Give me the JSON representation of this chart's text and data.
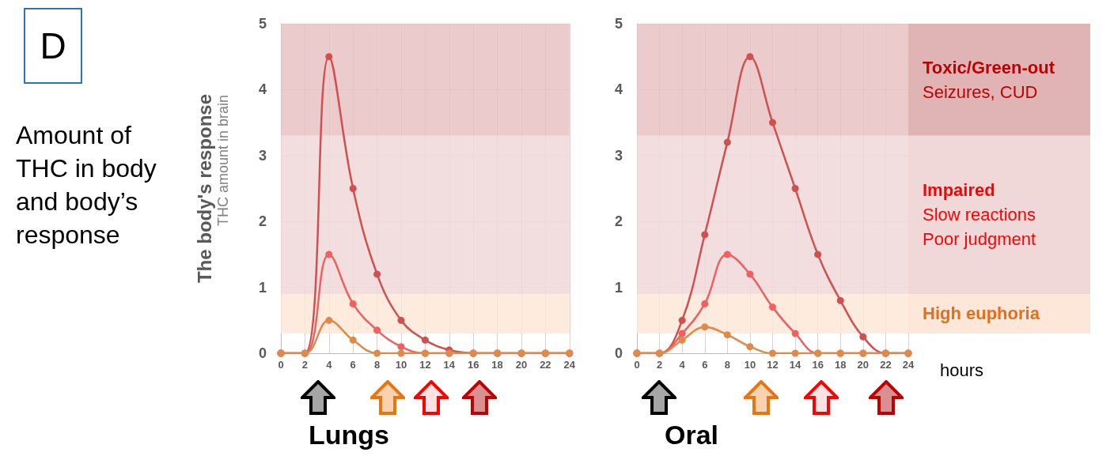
{
  "chart_data": [
    {
      "type": "line",
      "title": "Lungs",
      "ylabel": "The body's response",
      "annotations": [
        "D",
        "Amount of THC in body and body’s response",
        "THC amount in brain"
      ],
      "x": [
        0,
        2,
        4,
        6,
        8,
        10,
        12,
        14,
        16,
        18,
        20,
        22,
        24
      ],
      "series": [
        {
          "color": "#d05050",
          "values": [
            0,
            0,
            4.5,
            2.5,
            1.2,
            0.5,
            0.2,
            0.05,
            0,
            0,
            0,
            0,
            0
          ]
        },
        {
          "color": "#f06060",
          "values": [
            0,
            0,
            1.5,
            0.75,
            0.35,
            0.1,
            0,
            0,
            0,
            0,
            0,
            0,
            0
          ]
        },
        {
          "color": "#e08a4a",
          "values": [
            0,
            0,
            0.5,
            0.2,
            0,
            0,
            0,
            0,
            0,
            0,
            0,
            0,
            0
          ]
        }
      ],
      "xlim": [
        0,
        24
      ],
      "xticks": [
        0,
        2,
        4,
        6,
        8,
        10,
        12,
        14,
        16,
        18,
        20,
        22,
        24
      ],
      "ylim": [
        0,
        5
      ],
      "yticks": [
        0,
        1,
        2,
        3,
        4,
        5
      ],
      "grid": true,
      "marker": "circle",
      "line_style": "solid",
      "bands": [
        {
          "axis": "y",
          "from": 3.3,
          "to": 5,
          "color": "#e8c2c2"
        },
        {
          "axis": "y",
          "from": 0.9,
          "to": 3.3,
          "color": "#f0d8d8"
        },
        {
          "axis": "y",
          "from": 0.3,
          "to": 0.9,
          "color": "#fde7d8"
        }
      ]
    },
    {
      "type": "line",
      "title": "Oral",
      "xlabel": "hours",
      "x": [
        0,
        2,
        4,
        6,
        8,
        10,
        12,
        14,
        16,
        18,
        20,
        22,
        24
      ],
      "series": [
        {
          "color": "#d05050",
          "values": [
            0,
            0,
            0.5,
            1.8,
            3.2,
            4.5,
            3.5,
            2.5,
            1.5,
            0.8,
            0.25,
            0,
            0
          ]
        },
        {
          "color": "#f06060",
          "values": [
            0,
            0,
            0.3,
            0.75,
            1.5,
            1.2,
            0.7,
            0.3,
            0,
            0,
            0,
            0,
            0
          ]
        },
        {
          "color": "#e08a4a",
          "values": [
            0,
            0,
            0.2,
            0.4,
            0.28,
            0.1,
            0,
            0,
            0,
            0,
            0,
            0,
            0
          ]
        }
      ],
      "xlim": [
        0,
        24
      ],
      "xticks": [
        0,
        2,
        4,
        6,
        8,
        10,
        12,
        14,
        16,
        18,
        20,
        22,
        24
      ],
      "ylim": [
        0,
        5
      ],
      "yticks": [
        0,
        1,
        2,
        3,
        4,
        5
      ],
      "grid": true,
      "marker": "circle",
      "line_style": "solid",
      "bands": [
        {
          "axis": "y",
          "from": 3.3,
          "to": 5,
          "color": "#e8c2c2",
          "label": "Toxic/Green-out\nSeizures, CUD"
        },
        {
          "axis": "y",
          "from": 0.9,
          "to": 3.3,
          "color": "#f0d8d8",
          "label": "Impaired\nSlow reactions\nPoor judgment"
        },
        {
          "axis": "y",
          "from": 0.3,
          "to": 0.9,
          "color": "#fde7d8",
          "label": "High euphoria"
        }
      ]
    }
  ]
}
